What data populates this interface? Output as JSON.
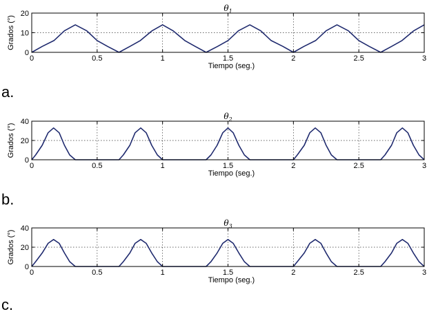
{
  "chart_data": [
    {
      "type": "line",
      "panel_label": "a.",
      "title": "θ1",
      "xlabel": "Tiempo (seg.)",
      "ylabel": "Grados (°)",
      "xlim": [
        0,
        3
      ],
      "ylim": [
        0,
        20
      ],
      "xticks": [
        0,
        0.5,
        1,
        1.5,
        2,
        2.5,
        3
      ],
      "xtick_labels": [
        "0",
        "0.5",
        "1",
        "1.5",
        "2",
        "2.5",
        "3"
      ],
      "yticks": [
        0,
        10,
        20
      ],
      "ytick_labels": [
        "0",
        "10",
        "20"
      ],
      "grid": true,
      "line_color": "#1f2a6e",
      "x": [
        0,
        0.08,
        0.17,
        0.25,
        0.333,
        0.42,
        0.5,
        0.58,
        0.667,
        0.75,
        0.83,
        0.92,
        1.0,
        1.08,
        1.17,
        1.25,
        1.333,
        1.42,
        1.5,
        1.58,
        1.667,
        1.75,
        1.83,
        1.92,
        2.0,
        2.08,
        2.17,
        2.25,
        2.333,
        2.42,
        2.5,
        2.58,
        2.667,
        2.75,
        2.83,
        2.92,
        3.0
      ],
      "y": [
        0,
        3,
        6,
        11,
        14,
        11,
        6,
        3,
        0,
        3,
        6,
        11,
        14,
        11,
        6,
        3,
        0,
        3,
        6,
        11,
        14,
        11,
        6,
        3,
        0,
        3,
        6,
        11,
        14,
        11,
        6,
        3,
        0,
        3,
        6,
        11,
        14
      ]
    },
    {
      "type": "line",
      "panel_label": "b.",
      "title": "θ2",
      "xlabel": "Tiempo (seg.)",
      "ylabel": "Grados (°)",
      "xlim": [
        0,
        3
      ],
      "ylim": [
        0,
        40
      ],
      "xticks": [
        0,
        0.5,
        1,
        1.5,
        2,
        2.5,
        3
      ],
      "xtick_labels": [
        "0",
        "0.5",
        "1",
        "1.5",
        "2",
        "2.5",
        "3"
      ],
      "yticks": [
        0,
        20,
        40
      ],
      "ytick_labels": [
        "0",
        "20",
        "40"
      ],
      "grid": true,
      "line_color": "#1f2a6e",
      "x": [
        0,
        0.03,
        0.08,
        0.125,
        0.167,
        0.21,
        0.25,
        0.29,
        0.333,
        0.667,
        0.7,
        0.75,
        0.79,
        0.833,
        0.875,
        0.917,
        0.96,
        1.0,
        1.333,
        1.37,
        1.417,
        1.46,
        1.5,
        1.54,
        1.583,
        1.625,
        1.667,
        2.0,
        2.03,
        2.083,
        2.125,
        2.167,
        2.21,
        2.25,
        2.29,
        2.333,
        2.667,
        2.7,
        2.75,
        2.79,
        2.833,
        2.875,
        2.917,
        2.96,
        3.0
      ],
      "y": [
        0,
        5,
        15,
        28,
        33,
        28,
        15,
        5,
        0,
        0,
        5,
        15,
        28,
        33,
        28,
        15,
        5,
        0,
        0,
        5,
        15,
        28,
        33,
        28,
        15,
        5,
        0,
        0,
        5,
        15,
        28,
        33,
        28,
        15,
        5,
        0,
        0,
        5,
        15,
        28,
        33,
        28,
        15,
        5,
        0
      ]
    },
    {
      "type": "line",
      "panel_label": "c.",
      "title": "θ3",
      "xlabel": "Tiempo (seg.)",
      "ylabel": "Grados (°)",
      "xlim": [
        0,
        3
      ],
      "ylim": [
        0,
        40
      ],
      "xticks": [
        0,
        0.5,
        1,
        1.5,
        2,
        2.5,
        3
      ],
      "xtick_labels": [
        "0",
        "0.5",
        "1",
        "1.5",
        "2",
        "2.5",
        "3"
      ],
      "yticks": [
        0,
        20,
        40
      ],
      "ytick_labels": [
        "0",
        "20",
        "40"
      ],
      "grid": true,
      "line_color": "#1f2a6e",
      "x": [
        0,
        0.03,
        0.08,
        0.125,
        0.167,
        0.21,
        0.25,
        0.29,
        0.333,
        0.667,
        0.7,
        0.75,
        0.79,
        0.833,
        0.875,
        0.917,
        0.96,
        1.0,
        1.333,
        1.37,
        1.417,
        1.46,
        1.5,
        1.54,
        1.583,
        1.625,
        1.667,
        2.0,
        2.03,
        2.083,
        2.125,
        2.167,
        2.21,
        2.25,
        2.29,
        2.333,
        2.667,
        2.7,
        2.75,
        2.79,
        2.833,
        2.875,
        2.917,
        2.96,
        3.0
      ],
      "y": [
        0,
        5,
        14,
        24,
        28,
        24,
        14,
        5,
        0,
        0,
        5,
        14,
        24,
        28,
        24,
        14,
        5,
        0,
        0,
        5,
        14,
        24,
        28,
        24,
        14,
        5,
        0,
        0,
        5,
        14,
        24,
        28,
        24,
        14,
        5,
        0,
        0,
        5,
        14,
        24,
        28,
        24,
        14,
        5,
        0
      ]
    }
  ]
}
